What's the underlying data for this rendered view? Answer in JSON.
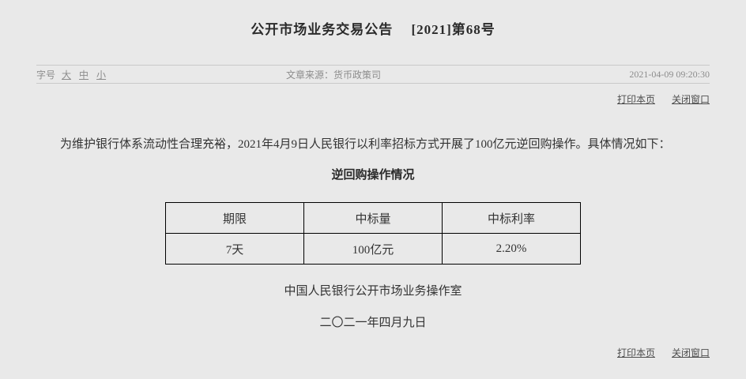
{
  "page": {
    "title": "公开市场业务交易公告 　[2021]第68号"
  },
  "meta": {
    "font_size_label": "字号",
    "font_size_options": [
      {
        "label": "大"
      },
      {
        "label": "中"
      },
      {
        "label": "小"
      }
    ],
    "source_label": "文章来源：",
    "source_value": "货币政策司",
    "timestamp": "2021-04-09 09:20:30"
  },
  "actions": {
    "print_label": "打印本页",
    "close_label": "关闭窗口"
  },
  "article": {
    "paragraph": "为维护银行体系流动性合理充裕，2021年4月9日人民银行以利率招标方式开展了100亿元逆回购操作。具体情况如下：",
    "table_title": "逆回购操作情况",
    "table": {
      "headers": [
        "期限",
        "中标量",
        "中标利率"
      ],
      "rows": [
        [
          "7天",
          "100亿元",
          "2.20%"
        ]
      ]
    },
    "signature": "中国人民银行公开市场业务操作室",
    "date": "二〇二一年四月九日"
  },
  "colors": {
    "background": "#e9e9e9",
    "rule_line": "#c9c9c9",
    "meta_text": "#8c8c8c",
    "link_text": "#4d4d4d",
    "body_text": "#333333",
    "table_border": "#000000"
  }
}
